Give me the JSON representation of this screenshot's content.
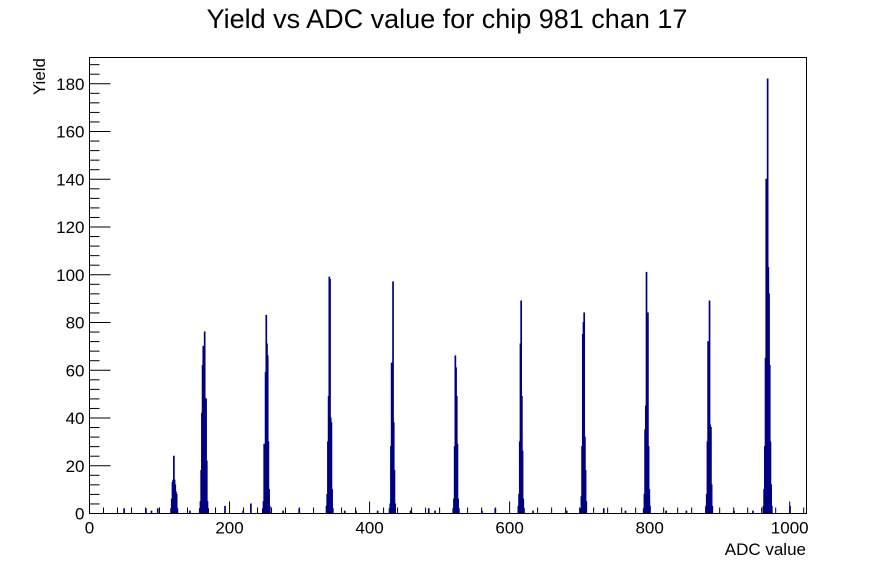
{
  "chart_data": {
    "type": "histogram",
    "title": "Yield vs ADC value for chip 981 chan 17",
    "xlabel": "ADC value",
    "ylabel": "Yield",
    "xlim": [
      0,
      1024
    ],
    "ylim": [
      0,
      191
    ],
    "x_ticks": [
      0,
      200,
      400,
      600,
      800,
      1000
    ],
    "x_tick_labels": [
      "0",
      "200",
      "400",
      "600",
      "800",
      "1000"
    ],
    "y_ticks": [
      0,
      20,
      40,
      60,
      80,
      100,
      120,
      140,
      160,
      180
    ],
    "y_tick_labels": [
      "0",
      "20",
      "40",
      "60",
      "80",
      "100",
      "120",
      "140",
      "160",
      "180"
    ],
    "bin_width": 1,
    "line_color": "#000080",
    "grid": false,
    "legend": "none",
    "peaks": [
      {
        "center": 120,
        "bins": [
          [
            116,
            2
          ],
          [
            117,
            6
          ],
          [
            118,
            13
          ],
          [
            119,
            14
          ],
          [
            120,
            24
          ],
          [
            121,
            14
          ],
          [
            122,
            12
          ],
          [
            123,
            9
          ],
          [
            124,
            8
          ],
          [
            125,
            2
          ]
        ]
      },
      {
        "center": 165,
        "bins": [
          [
            157,
            2
          ],
          [
            158,
            5
          ],
          [
            159,
            18
          ],
          [
            160,
            42
          ],
          [
            161,
            62
          ],
          [
            162,
            70
          ],
          [
            163,
            62
          ],
          [
            164,
            76
          ],
          [
            165,
            34
          ],
          [
            166,
            48
          ],
          [
            167,
            22
          ],
          [
            168,
            5
          ],
          [
            169,
            2
          ]
        ]
      },
      {
        "center": 253,
        "bins": [
          [
            247,
            2
          ],
          [
            248,
            5
          ],
          [
            249,
            29
          ],
          [
            250,
            26
          ],
          [
            251,
            59
          ],
          [
            252,
            83
          ],
          [
            253,
            71
          ],
          [
            254,
            66
          ],
          [
            255,
            30
          ],
          [
            256,
            10
          ],
          [
            257,
            3
          ]
        ]
      },
      {
        "center": 343,
        "bins": [
          [
            338,
            3
          ],
          [
            339,
            8
          ],
          [
            340,
            30
          ],
          [
            341,
            49
          ],
          [
            342,
            99
          ],
          [
            343,
            98
          ],
          [
            344,
            40
          ],
          [
            345,
            38
          ],
          [
            346,
            10
          ],
          [
            347,
            2
          ]
        ]
      },
      {
        "center": 434,
        "bins": [
          [
            428,
            2
          ],
          [
            429,
            4
          ],
          [
            430,
            28
          ],
          [
            431,
            63
          ],
          [
            432,
            52
          ],
          [
            433,
            97
          ],
          [
            434,
            38
          ],
          [
            435,
            18
          ],
          [
            436,
            4
          ]
        ]
      },
      {
        "center": 524,
        "bins": [
          [
            519,
            2
          ],
          [
            520,
            6
          ],
          [
            521,
            28
          ],
          [
            522,
            66
          ],
          [
            523,
            61
          ],
          [
            524,
            49
          ],
          [
            525,
            29
          ],
          [
            526,
            6
          ],
          [
            527,
            2
          ]
        ]
      },
      {
        "center": 617,
        "bins": [
          [
            612,
            3
          ],
          [
            613,
            8
          ],
          [
            614,
            30
          ],
          [
            615,
            71
          ],
          [
            616,
            89
          ],
          [
            617,
            49
          ],
          [
            618,
            26
          ],
          [
            619,
            6
          ],
          [
            620,
            2
          ]
        ]
      },
      {
        "center": 707,
        "bins": [
          [
            701,
            2
          ],
          [
            702,
            7
          ],
          [
            703,
            28
          ],
          [
            704,
            75
          ],
          [
            705,
            80
          ],
          [
            706,
            84
          ],
          [
            707,
            32
          ],
          [
            708,
            18
          ],
          [
            709,
            5
          ]
        ]
      },
      {
        "center": 798,
        "bins": [
          [
            791,
            2
          ],
          [
            792,
            8
          ],
          [
            793,
            35
          ],
          [
            794,
            45
          ],
          [
            795,
            101
          ],
          [
            796,
            53
          ],
          [
            797,
            84
          ],
          [
            798,
            28
          ],
          [
            799,
            10
          ],
          [
            800,
            3
          ]
        ]
      },
      {
        "center": 886,
        "bins": [
          [
            880,
            3
          ],
          [
            881,
            8
          ],
          [
            882,
            30
          ],
          [
            883,
            72
          ],
          [
            884,
            66
          ],
          [
            885,
            89
          ],
          [
            886,
            37
          ],
          [
            887,
            36
          ],
          [
            888,
            12
          ],
          [
            889,
            3
          ]
        ]
      },
      {
        "center": 969,
        "bins": [
          [
            962,
            3
          ],
          [
            963,
            10
          ],
          [
            964,
            28
          ],
          [
            965,
            65
          ],
          [
            966,
            140
          ],
          [
            967,
            120
          ],
          [
            968,
            182
          ],
          [
            969,
            103
          ],
          [
            970,
            92
          ],
          [
            971,
            62
          ],
          [
            972,
            30
          ],
          [
            973,
            12
          ],
          [
            974,
            3
          ]
        ]
      }
    ],
    "scattered_bins": [
      [
        49,
        2
      ],
      [
        80,
        2
      ],
      [
        88,
        1
      ],
      [
        97,
        2
      ],
      [
        143,
        1
      ],
      [
        193,
        3
      ],
      [
        219,
        1
      ],
      [
        230,
        4
      ],
      [
        276,
        1
      ],
      [
        299,
        2
      ],
      [
        364,
        1
      ],
      [
        380,
        1
      ],
      [
        411,
        1
      ],
      [
        458,
        1
      ],
      [
        484,
        2
      ],
      [
        493,
        1
      ],
      [
        560,
        1
      ],
      [
        579,
        2
      ],
      [
        633,
        1
      ],
      [
        681,
        1
      ],
      [
        734,
        2
      ],
      [
        765,
        1
      ],
      [
        823,
        1
      ],
      [
        852,
        1
      ],
      [
        920,
        1
      ],
      [
        947,
        1
      ],
      [
        1000,
        3
      ]
    ]
  }
}
